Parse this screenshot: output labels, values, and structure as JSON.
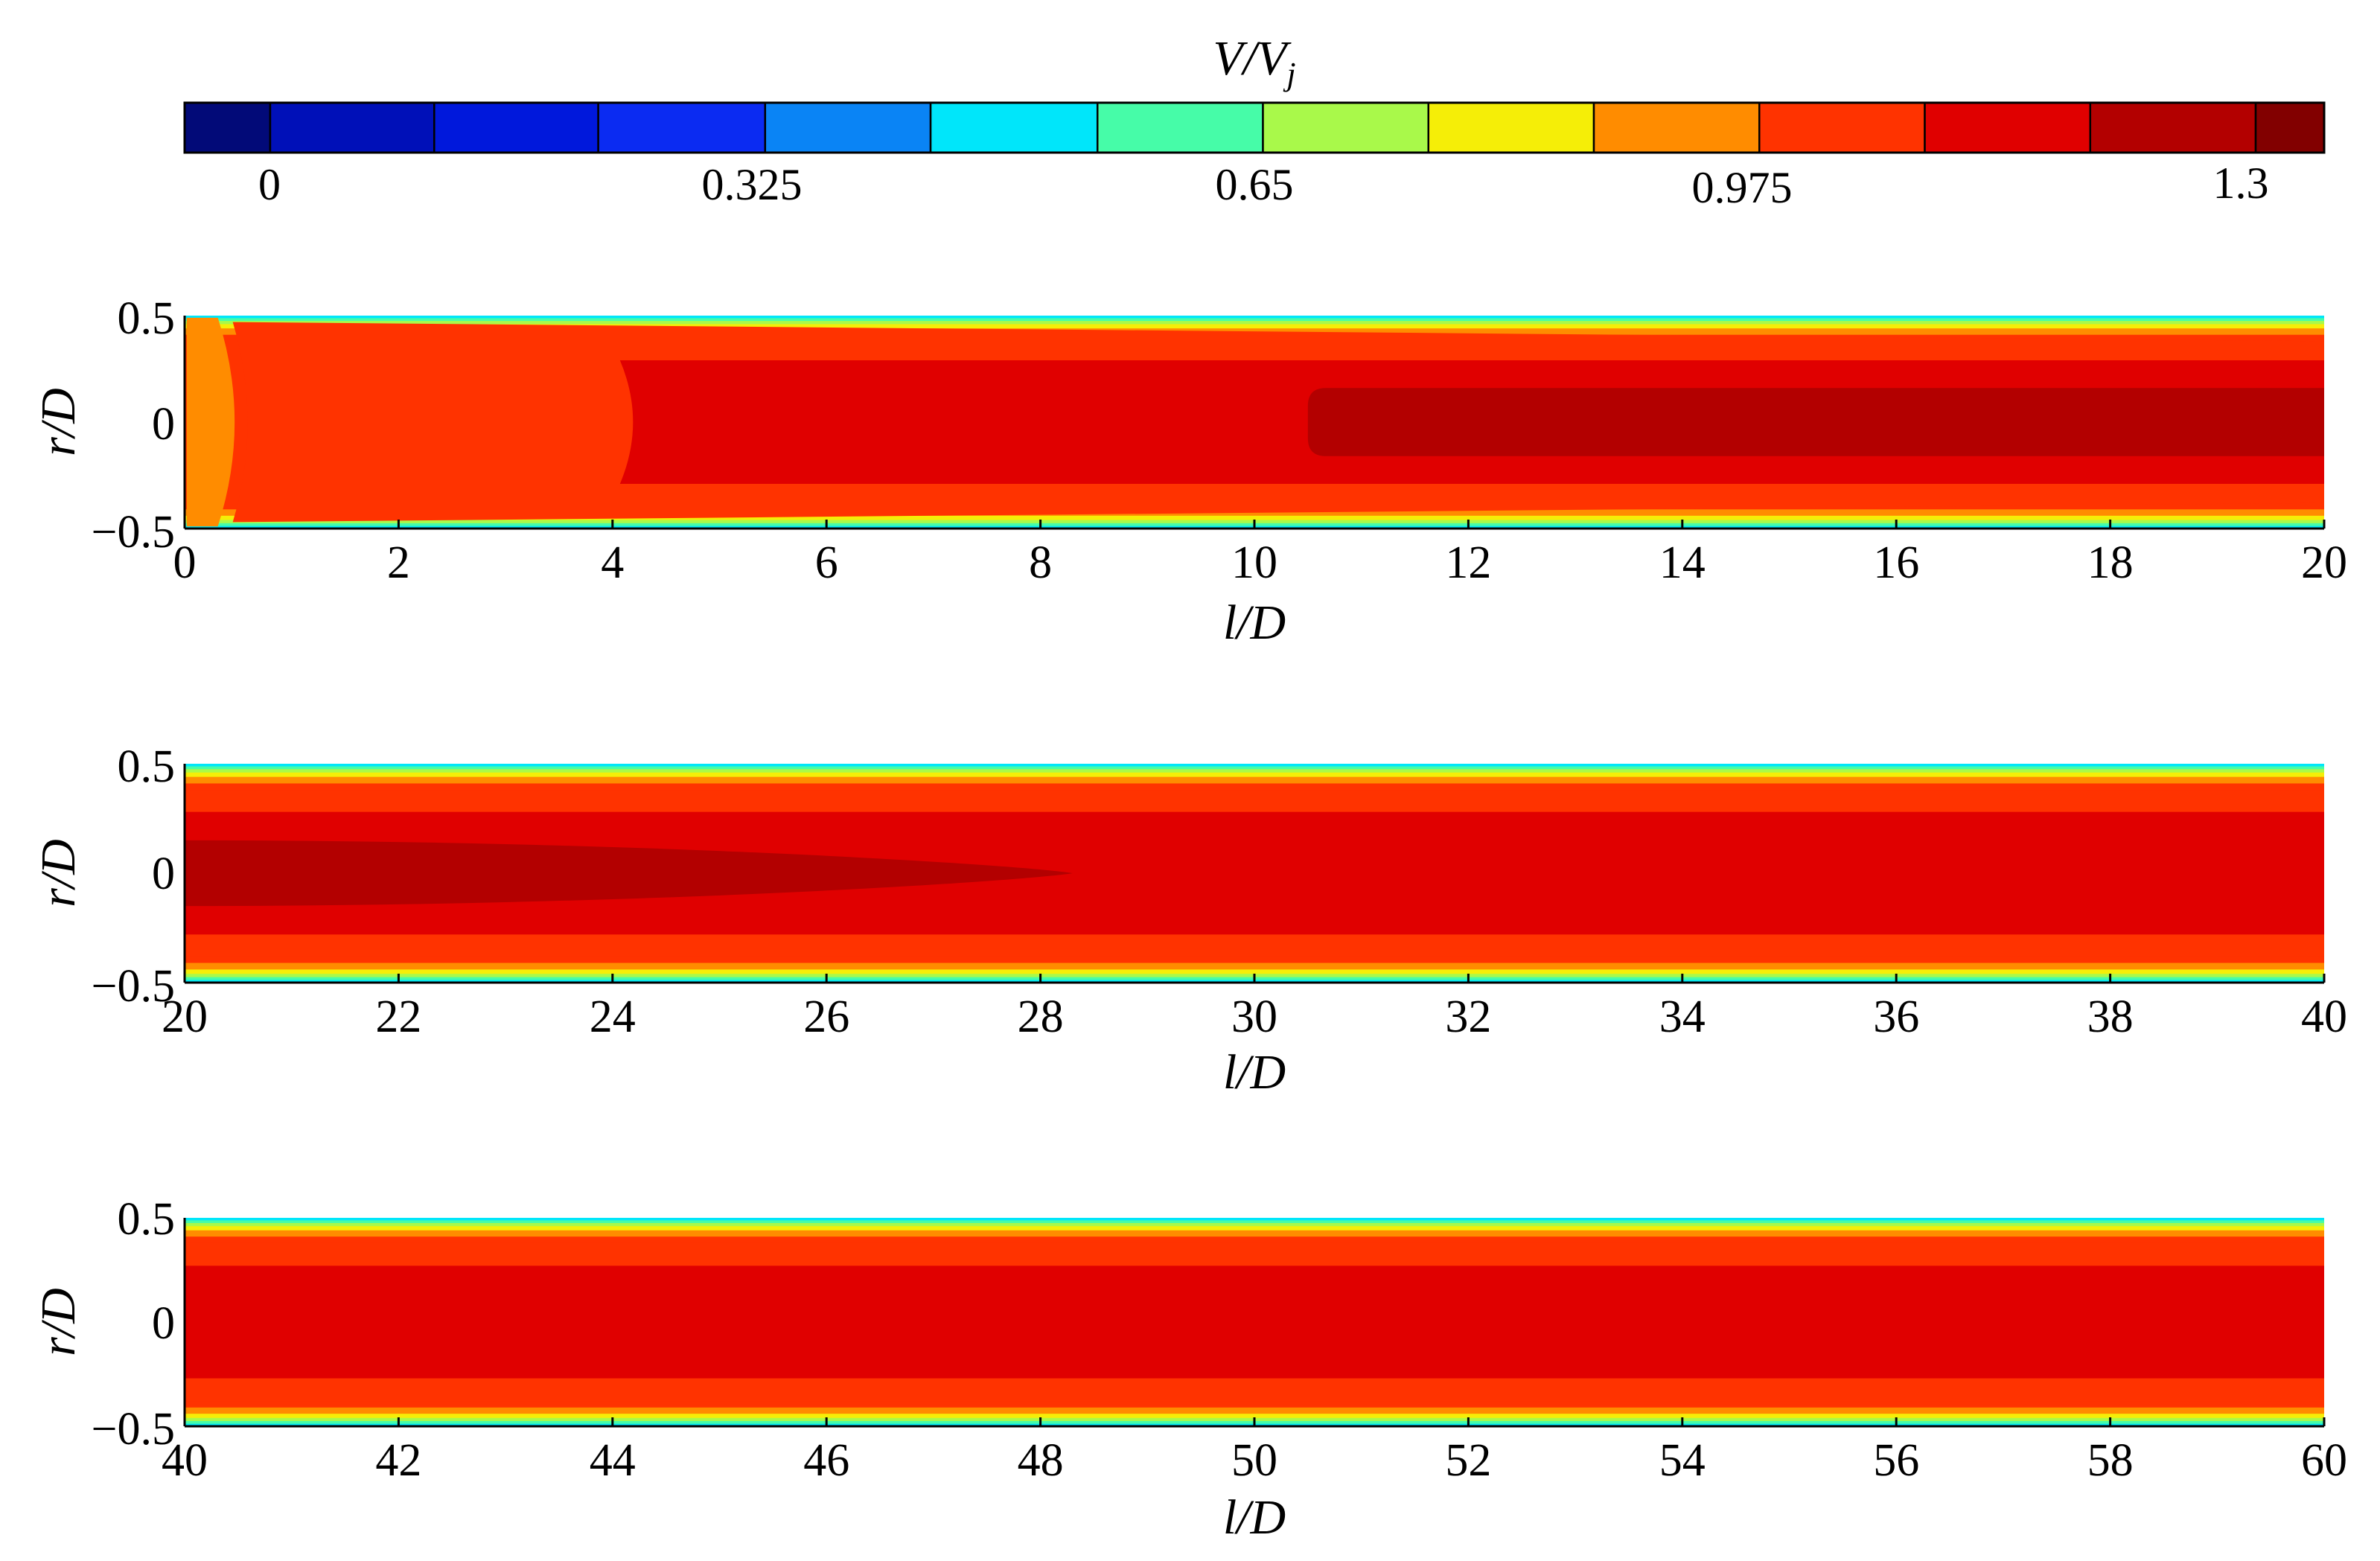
{
  "colorbar": {
    "title": "V/V",
    "title_sub": "j",
    "tick_labels": [
      "0",
      "0.325",
      "0.65",
      "0.975",
      "1.3"
    ],
    "tick_values": [
      0,
      0.325,
      0.65,
      0.975,
      1.3
    ],
    "range": [
      -0.1,
      1.4
    ],
    "level_edges": [
      -0.1,
      -0.04,
      0.075,
      0.19,
      0.307,
      0.423,
      0.54,
      0.656,
      0.772,
      0.888,
      1.004,
      1.12,
      1.236,
      1.352,
      1.4
    ],
    "level_colors": [
      "#020a78",
      "#0010b8",
      "#0018dc",
      "#0b2bf2",
      "#0a84f5",
      "#00e6fa",
      "#46fca8",
      "#a9f94a",
      "#f5ee07",
      "#ff8c00",
      "#ff3300",
      "#e00000",
      "#b30000",
      "#820000"
    ]
  },
  "chart_data": [
    {
      "type": "heatmap",
      "title": "",
      "xlabel": "l/D",
      "ylabel": "r/D",
      "xlim": [
        0,
        20
      ],
      "ylim": [
        -0.5,
        0.5
      ],
      "x_ticks": [
        "0",
        "2",
        "4",
        "6",
        "8",
        "10",
        "12",
        "14",
        "16",
        "18",
        "20"
      ],
      "y_ticks": [
        "0.5",
        "0",
        "−0.5"
      ],
      "regions": [
        {
          "name": "core-l/D-0-0.5",
          "x": [
            0.02,
            0.45
          ],
          "r_half": 0.49,
          "value": 0.95
        },
        {
          "name": "shear-layer",
          "x": [
            0.45,
            20
          ],
          "r_half_start": 0.47,
          "r_half_end": 0.38,
          "value": 1.06
        },
        {
          "name": "core-l/D-4-20",
          "x": [
            4.0,
            20
          ],
          "r_half": 0.29,
          "value": 1.18
        },
        {
          "name": "peak-core-l/D-10.5-20",
          "x": [
            10.5,
            20
          ],
          "r_half": 0.16,
          "value": 1.33
        }
      ]
    },
    {
      "type": "heatmap",
      "title": "",
      "xlabel": "l/D",
      "ylabel": "r/D",
      "xlim": [
        20,
        40
      ],
      "ylim": [
        -0.5,
        0.5
      ],
      "x_ticks": [
        "20",
        "22",
        "24",
        "26",
        "28",
        "30",
        "32",
        "34",
        "36",
        "38",
        "40"
      ],
      "y_ticks": [
        "0.5",
        "0",
        "−0.5"
      ],
      "regions": [
        {
          "name": "shear-layer",
          "x": [
            20,
            40
          ],
          "r_half": 0.38,
          "value": 1.06
        },
        {
          "name": "core",
          "x": [
            20,
            40
          ],
          "r_half": 0.28,
          "value": 1.18
        },
        {
          "name": "peak-core-l/D-20-28.3",
          "x": [
            20,
            28.3
          ],
          "r_half": 0.15,
          "value": 1.33
        }
      ]
    },
    {
      "type": "heatmap",
      "title": "",
      "xlabel": "l/D",
      "ylabel": "r/D",
      "xlim": [
        40,
        60
      ],
      "ylim": [
        -0.5,
        0.5
      ],
      "x_ticks": [
        "40",
        "42",
        "44",
        "46",
        "48",
        "50",
        "52",
        "54",
        "56",
        "58",
        "60"
      ],
      "y_ticks": [
        "0.5",
        "0",
        "−0.5"
      ],
      "regions": [
        {
          "name": "shear-layer",
          "x": [
            40,
            60
          ],
          "r_half": 0.38,
          "value": 1.06
        },
        {
          "name": "core",
          "x": [
            40,
            60
          ],
          "r_half": 0.27,
          "value": 1.18
        }
      ]
    }
  ]
}
